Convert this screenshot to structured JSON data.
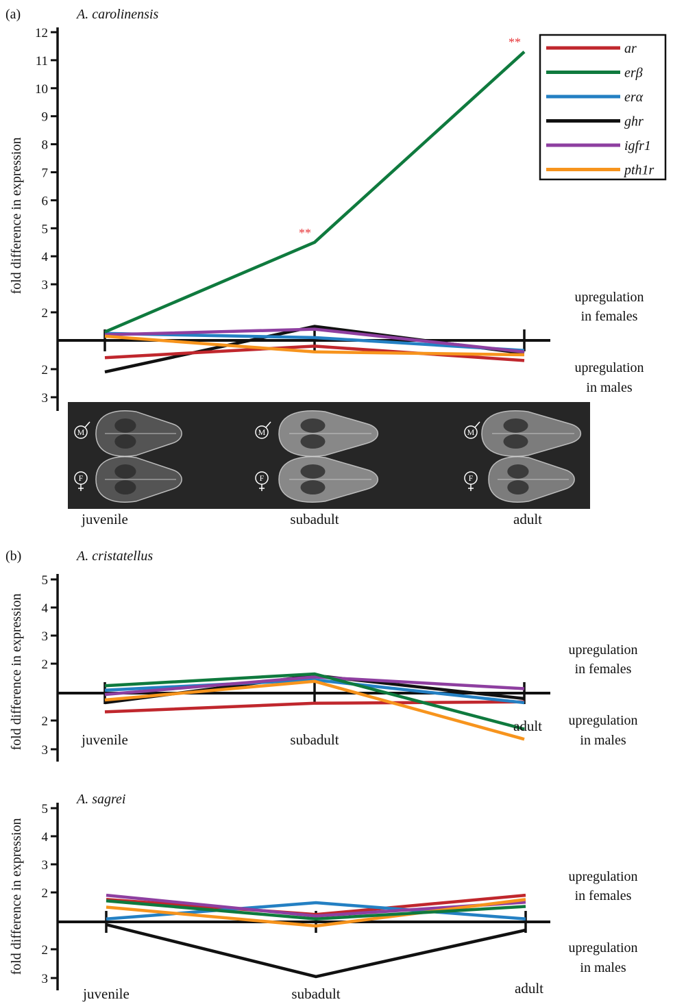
{
  "colors": {
    "ar": "#c0272d",
    "er_beta": "#0f7a3e",
    "er_alpha": "#2480c3",
    "ghr": "#111111",
    "igfr1": "#8e3fa0",
    "pth1r": "#f7941d",
    "star": "#e8383b",
    "axis": "#111111",
    "skull_panel": "#262626"
  },
  "legend": [
    {
      "key": "ar",
      "label": "ar"
    },
    {
      "key": "er_beta",
      "label": "erβ"
    },
    {
      "key": "er_alpha",
      "label": "erα"
    },
    {
      "key": "ghr",
      "label": "ghr"
    },
    {
      "key": "igfr1",
      "label": "igfr1"
    },
    {
      "key": "pth1r",
      "label": "pth1r"
    }
  ],
  "skull_images": {
    "rows": [
      {
        "sex": "M"
      },
      {
        "sex": "F"
      }
    ],
    "icon": "skull-image"
  },
  "chart_data": [
    {
      "type": "line",
      "panel_label": "(a)",
      "title": "A. carolinensis",
      "ylabel": "fold difference in expression",
      "categories": [
        "juvenile",
        "subadult",
        "adult"
      ],
      "yticks_up": [
        "2",
        "3",
        "4",
        "5",
        "6",
        "7",
        "8",
        "9",
        "10",
        "11",
        "12"
      ],
      "yticks_down": [
        "2",
        "3"
      ],
      "ylim": [
        -3,
        12
      ],
      "region_labels": {
        "upper": [
          "upregulation",
          "in females"
        ],
        "lower": [
          "upregulation",
          "in males"
        ]
      },
      "series": [
        {
          "name": "ar",
          "key": "ar",
          "values": [
            -0.6,
            -0.2,
            -0.7
          ]
        },
        {
          "name": "erβ",
          "key": "er_beta",
          "values": [
            0.3,
            4.5,
            11.3
          ],
          "annotations": [
            "",
            "**",
            "**"
          ]
        },
        {
          "name": "erα",
          "key": "er_alpha",
          "values": [
            0.25,
            0.1,
            -0.35
          ]
        },
        {
          "name": "ghr",
          "key": "ghr",
          "values": [
            -2.1,
            0.5,
            -0.45
          ]
        },
        {
          "name": "igfr1",
          "key": "igfr1",
          "values": [
            0.2,
            0.4,
            -0.4
          ]
        },
        {
          "name": "pth1r",
          "key": "pth1r",
          "values": [
            0.15,
            -0.4,
            -0.5
          ]
        }
      ]
    },
    {
      "type": "line",
      "panel_label": "(b)",
      "title": "A. cristatellus",
      "ylabel": "fold difference in expression",
      "categories": [
        "juvenile",
        "subadult",
        "adult"
      ],
      "yticks_up": [
        "2",
        "3",
        "4",
        "5"
      ],
      "yticks_down": [
        "2",
        "3"
      ],
      "ylim": [
        -3,
        5
      ],
      "region_labels": {
        "upper": [
          "upregulation",
          "in females"
        ],
        "lower": [
          "upregulation",
          "in males"
        ]
      },
      "series": [
        {
          "name": "ar",
          "key": "ar",
          "values": [
            -1.7,
            -1.4,
            -1.35
          ]
        },
        {
          "name": "erβ",
          "key": "er_beta",
          "values": [
            0.25,
            0.65,
            -2.3
          ]
        },
        {
          "name": "erα",
          "key": "er_alpha",
          "values": [
            0.1,
            0.45,
            -0.35
          ]
        },
        {
          "name": "ghr",
          "key": "ghr",
          "values": [
            -0.35,
            0.6,
            -0.2
          ]
        },
        {
          "name": "igfr1",
          "key": "igfr1",
          "values": [
            -0.05,
            0.55,
            0.15
          ]
        },
        {
          "name": "pth1r",
          "key": "pth1r",
          "values": [
            -0.25,
            0.4,
            -2.65
          ]
        }
      ]
    },
    {
      "type": "line",
      "panel_label": "",
      "title": "A. sagrei",
      "ylabel": "fold difference in expression",
      "categories": [
        "juvenile",
        "subadult",
        "adult"
      ],
      "yticks_up": [
        "2",
        "3",
        "4",
        "5"
      ],
      "yticks_down": [
        "2",
        "3"
      ],
      "ylim": [
        -3,
        5
      ],
      "region_labels": {
        "upper": [
          "upregulation",
          "in females"
        ],
        "lower": [
          "upregulation",
          "in males"
        ]
      },
      "series": [
        {
          "name": "ar",
          "key": "ar",
          "values": [
            1.75,
            0.25,
            1.9
          ]
        },
        {
          "name": "erβ",
          "key": "er_beta",
          "values": [
            1.7,
            0.1,
            1.5
          ]
        },
        {
          "name": "erα",
          "key": "er_alpha",
          "values": [
            0.1,
            0.65,
            0.1
          ]
        },
        {
          "name": "ghr",
          "key": "ghr",
          "values": [
            -0.1,
            -2.95,
            -0.3
          ]
        },
        {
          "name": "igfr1",
          "key": "igfr1",
          "values": [
            1.9,
            0.2,
            1.65
          ]
        },
        {
          "name": "pth1r",
          "key": "pth1r",
          "values": [
            0.5,
            -0.15,
            1.75
          ]
        }
      ]
    }
  ]
}
